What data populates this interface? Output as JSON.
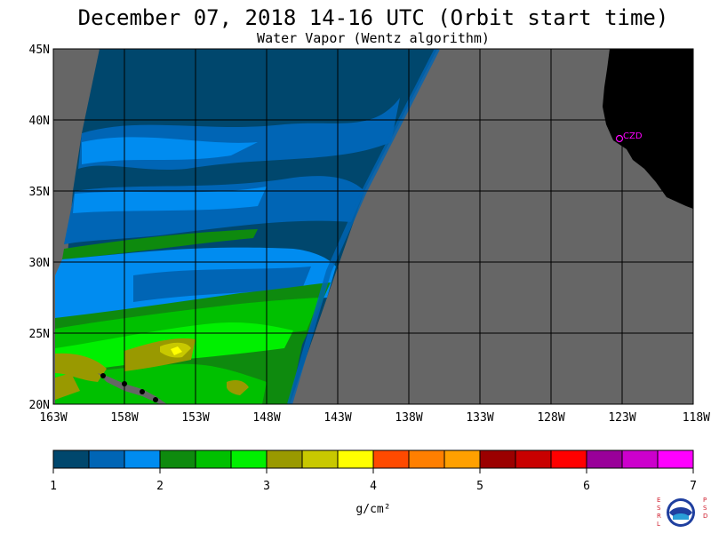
{
  "header": {
    "title": "December 07, 2018  14-16 UTC  (Orbit start time)",
    "subtitle": "Water Vapor (Wentz algorithm)"
  },
  "map": {
    "lat_labels": [
      "45N",
      "40N",
      "35N",
      "30N",
      "25N",
      "20N"
    ],
    "lat_values": [
      45,
      40,
      35,
      30,
      25,
      20
    ],
    "lon_labels": [
      "163W",
      "158W",
      "153W",
      "148W",
      "143W",
      "138W",
      "133W",
      "128W",
      "123W",
      "118W"
    ],
    "lon_values": [
      -163,
      -158,
      -153,
      -148,
      -143,
      -138,
      -133,
      -128,
      -123,
      -118
    ],
    "lat_range": [
      20,
      45
    ],
    "lon_range": [
      -163,
      -118
    ],
    "station_label": "CZD",
    "colors": {
      "no_data": "#666666",
      "land": "#000000",
      "grid": "#000000",
      "station": "#ff00ff"
    }
  },
  "colorbar": {
    "tick_labels": [
      "1",
      "2",
      "3",
      "4",
      "5",
      "6",
      "7"
    ],
    "unit_label": "g/cm²",
    "colors": [
      "#00476d",
      "#0065b5",
      "#008cf0",
      "#0e8a0e",
      "#00c000",
      "#00f000",
      "#999900",
      "#c8c800",
      "#ffff00",
      "#ff4a00",
      "#ff7f00",
      "#ffa000",
      "#9b0000",
      "#c80000",
      "#ff0000",
      "#990099",
      "#cc00cc",
      "#ff00ff"
    ]
  },
  "logo": {
    "left_letters": "ESRL",
    "right_letters": "PSD",
    "center_text": "NOAA"
  }
}
